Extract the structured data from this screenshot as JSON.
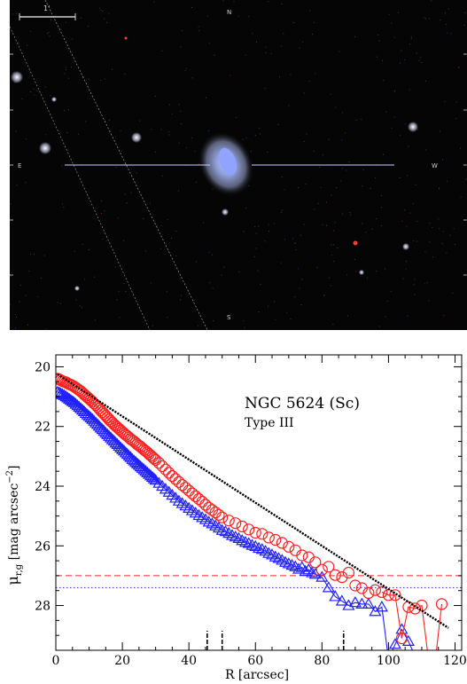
{
  "image_panel": {
    "compass": [
      "N",
      "E",
      "W",
      "S"
    ],
    "scale_bar_label": "1'"
  },
  "chart_data": {
    "type": "scatter",
    "annotations": [
      "NGC 5624 (Sc)",
      "Type III"
    ],
    "xlabel": "R [arcsec]",
    "ylabel": "μr,g [mag arcsec−2]",
    "ylabel_parts": [
      "μ",
      "r,g",
      " [mag arcsec",
      "−2",
      "]"
    ],
    "xlim": [
      0,
      122
    ],
    "ylim": [
      29.5,
      19.6
    ],
    "y_inverted": true,
    "x_ticks": [
      "0",
      "20",
      "40",
      "60",
      "80",
      "100",
      "120"
    ],
    "y_ticks": [
      "20",
      "22",
      "24",
      "26",
      "28"
    ],
    "colors": {
      "r": "#ff2020",
      "g": "#2020ff",
      "fit": "#000000"
    },
    "sky_limits": {
      "r": 27.0,
      "g": 27.4
    },
    "break_markers": [
      45.5,
      50,
      86.5
    ],
    "fit": {
      "x": [
        0.5,
        118
      ],
      "y": [
        20.25,
        28.75
      ]
    },
    "series": [
      {
        "band": "r",
        "marker": "circle",
        "x": [
          0.5,
          1,
          1.5,
          2,
          2.5,
          3,
          3.5,
          4,
          4.5,
          5,
          5.5,
          6,
          6.5,
          7,
          7.5,
          8,
          8.5,
          9,
          9.5,
          10,
          10.5,
          11,
          11.5,
          12,
          12.5,
          13,
          13.5,
          14,
          14.5,
          15,
          15.5,
          16,
          16.5,
          17,
          17.5,
          18,
          18.5,
          19,
          19.5,
          20,
          20.5,
          21,
          21.5,
          22,
          22.5,
          23,
          23.5,
          24,
          24.5,
          25,
          25.5,
          26,
          26.5,
          27,
          27.5,
          28,
          28.5,
          29,
          29.5,
          30,
          31,
          32,
          33,
          34,
          35,
          36,
          37,
          38,
          39,
          40,
          41,
          42,
          43,
          44,
          45,
          46,
          47,
          48,
          49,
          50,
          52,
          54,
          56,
          58,
          60,
          62,
          64,
          66,
          68,
          70,
          72,
          74,
          76,
          78,
          80,
          82,
          84,
          86,
          88,
          90,
          92,
          94,
          96,
          98,
          100,
          102,
          104,
          106,
          108,
          110,
          112,
          114,
          116
        ],
        "y": [
          20.4,
          20.42,
          20.45,
          20.48,
          20.5,
          20.52,
          20.55,
          20.58,
          20.6,
          20.63,
          20.66,
          20.7,
          20.74,
          20.78,
          20.82,
          20.87,
          20.92,
          20.97,
          21.02,
          21.07,
          21.12,
          21.17,
          21.23,
          21.28,
          21.34,
          21.4,
          21.46,
          21.52,
          21.58,
          21.64,
          21.7,
          21.76,
          21.82,
          21.87,
          21.93,
          21.98,
          22.03,
          22.08,
          22.13,
          22.18,
          22.23,
          22.28,
          22.32,
          22.37,
          22.42,
          22.46,
          22.5,
          22.55,
          22.6,
          22.64,
          22.68,
          22.73,
          22.78,
          22.82,
          22.87,
          22.92,
          22.97,
          23.02,
          23.07,
          23.12,
          23.22,
          23.33,
          23.44,
          23.55,
          23.66,
          23.76,
          23.86,
          23.96,
          24.05,
          24.15,
          24.24,
          24.34,
          24.43,
          24.52,
          24.62,
          24.72,
          24.8,
          24.88,
          24.96,
          25.05,
          25.15,
          25.24,
          25.35,
          25.45,
          25.56,
          25.6,
          25.72,
          25.8,
          25.9,
          26.03,
          26.15,
          26.32,
          26.38,
          26.55,
          26.8,
          26.7,
          26.98,
          27.05,
          26.9,
          27.33,
          27.42,
          27.58,
          27.48,
          27.55,
          27.65,
          27.65,
          29.1,
          28.05,
          28.1,
          28.0,
          29.8,
          29.9,
          27.95
        ],
        "connect_from_x": 100
      },
      {
        "band": "g",
        "marker": "triangle",
        "x": [
          0.5,
          1,
          1.5,
          2,
          2.5,
          3,
          3.5,
          4,
          4.5,
          5,
          5.5,
          6,
          6.5,
          7,
          7.5,
          8,
          8.5,
          9,
          9.5,
          10,
          10.5,
          11,
          11.5,
          12,
          12.5,
          13,
          13.5,
          14,
          14.5,
          15,
          15.5,
          16,
          16.5,
          17,
          17.5,
          18,
          18.5,
          19,
          19.5,
          20,
          20.5,
          21,
          21.5,
          22,
          22.5,
          23,
          23.5,
          24,
          24.5,
          25,
          25.5,
          26,
          26.5,
          27,
          27.5,
          28,
          28.5,
          29,
          29.5,
          30,
          31,
          32,
          33,
          34,
          35,
          36,
          37,
          38,
          39,
          40,
          41,
          42,
          43,
          44,
          45,
          46,
          47,
          48,
          49,
          50,
          51,
          52,
          53,
          54,
          55,
          56,
          57,
          58,
          59,
          60,
          61,
          62,
          63,
          64,
          65,
          66,
          67,
          68,
          69,
          70,
          71,
          72,
          73,
          74,
          75,
          76,
          77,
          78,
          80,
          82,
          84,
          86,
          88,
          90,
          92,
          94,
          96,
          98,
          100,
          102,
          104,
          106,
          108
        ],
        "y": [
          20.85,
          20.87,
          20.9,
          20.93,
          20.96,
          21.0,
          21.04,
          21.08,
          21.12,
          21.16,
          21.2,
          21.25,
          21.3,
          21.35,
          21.4,
          21.45,
          21.5,
          21.56,
          21.61,
          21.66,
          21.71,
          21.76,
          21.82,
          21.88,
          21.93,
          21.99,
          22.05,
          22.1,
          22.16,
          22.22,
          22.27,
          22.33,
          22.38,
          22.44,
          22.49,
          22.55,
          22.6,
          22.66,
          22.72,
          22.77,
          22.82,
          22.88,
          22.93,
          22.99,
          23.04,
          23.1,
          23.15,
          23.2,
          23.25,
          23.3,
          23.35,
          23.4,
          23.45,
          23.5,
          23.55,
          23.6,
          23.65,
          23.7,
          23.75,
          23.8,
          23.9,
          24.0,
          24.1,
          24.2,
          24.3,
          24.4,
          24.5,
          24.58,
          24.66,
          24.74,
          24.82,
          24.9,
          24.98,
          25.05,
          25.12,
          25.2,
          25.26,
          25.33,
          25.4,
          25.48,
          25.52,
          25.58,
          25.65,
          25.7,
          25.75,
          25.82,
          25.88,
          25.92,
          25.98,
          26.02,
          26.08,
          26.12,
          26.18,
          26.25,
          26.3,
          26.37,
          26.42,
          26.48,
          26.55,
          26.6,
          26.65,
          26.7,
          26.78,
          26.72,
          26.85,
          26.8,
          26.9,
          26.95,
          27.05,
          27.4,
          27.7,
          27.85,
          28.0,
          27.9,
          27.95,
          27.95,
          28.2,
          28.05,
          29.8,
          29.3,
          28.8,
          29.2,
          29.7
        ]
      }
    ]
  }
}
